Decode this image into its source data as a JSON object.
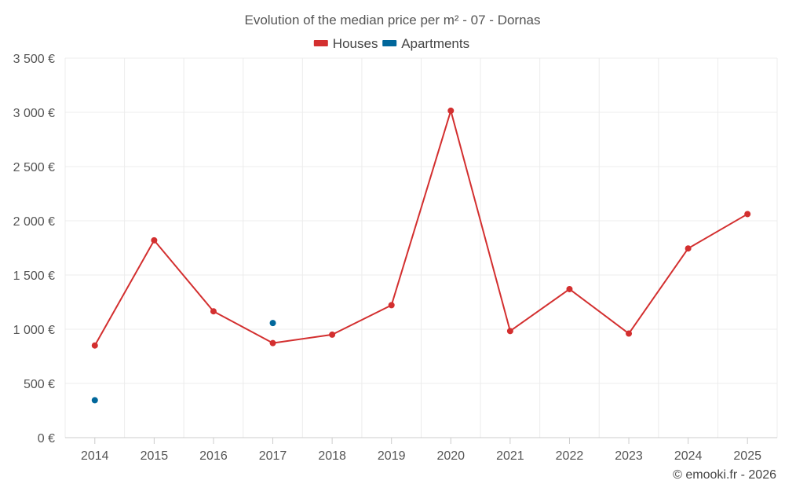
{
  "chart_data": {
    "type": "line",
    "title": "Evolution of the median price per m² - 07 - Dornas",
    "categories": [
      "2014",
      "2015",
      "2016",
      "2017",
      "2018",
      "2019",
      "2020",
      "2021",
      "2022",
      "2023",
      "2024",
      "2025"
    ],
    "series": [
      {
        "name": "Houses",
        "color": "#d32f2f",
        "values": [
          850,
          1820,
          1165,
          872,
          950,
          1222,
          3015,
          983,
          1370,
          960,
          1745,
          2062
        ]
      },
      {
        "name": "Apartments",
        "color": "#01679b",
        "values": [
          345,
          null,
          null,
          1057,
          null,
          null,
          null,
          null,
          null,
          null,
          null,
          null
        ]
      }
    ],
    "ylim": [
      0,
      3500
    ],
    "yticks": [
      0,
      500,
      1000,
      1500,
      2000,
      2500,
      3000,
      3500
    ],
    "ytick_labels": [
      "0 €",
      "500 €",
      "1 000 €",
      "1 500 €",
      "2 000 €",
      "2 500 €",
      "3 000 €",
      "3 500 €"
    ],
    "grid": true,
    "legend_position": "top-center",
    "credit": "© emooki.fr - 2026"
  }
}
